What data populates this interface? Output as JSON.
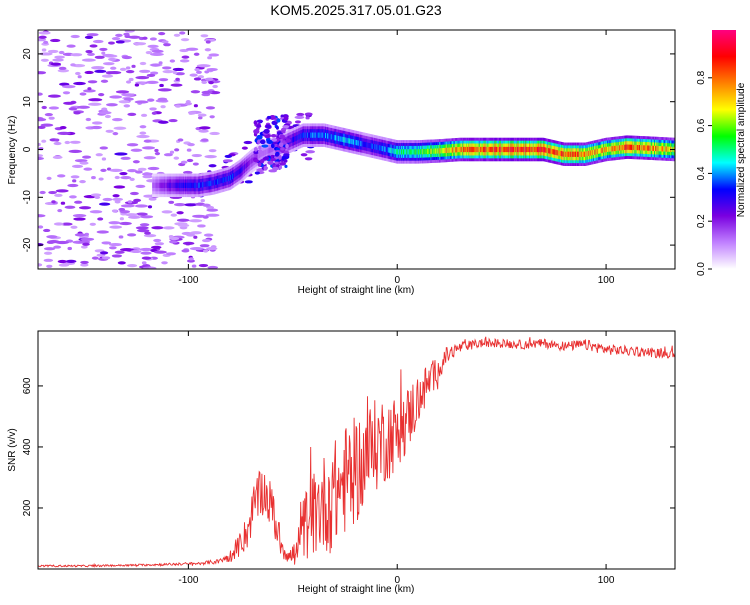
{
  "title": "KOM5.2025.317.05.01.G23",
  "chart_data": [
    {
      "type": "heatmap",
      "title": "KOM5.2025.317.05.01.G23",
      "xlabel": "Height of straight line (km)",
      "ylabel": "Frequency (Hz)",
      "xlim": [
        -172,
        133
      ],
      "ylim": [
        -25,
        25
      ],
      "xticks": [
        -100,
        0,
        100
      ],
      "xtick_labels": [
        "-100",
        "0",
        "100"
      ],
      "yticks": [
        -20,
        -10,
        0,
        10,
        20
      ],
      "ytick_labels": [
        "-20",
        "-10",
        "0",
        "10",
        "20"
      ],
      "colorbar": {
        "label": "Normalized spectral amplitude",
        "range": [
          0,
          1
        ],
        "ticks": [
          0.0,
          0.2,
          0.4,
          0.6,
          0.8
        ],
        "tick_labels": [
          "0.0",
          "0.2",
          "0.4",
          "0.6",
          "0.8"
        ],
        "colors": [
          "#ffffff",
          "#c080ff",
          "#7a00e0",
          "#0000ff",
          "#00ffff",
          "#00ff00",
          "#ffff00",
          "#ff8000",
          "#ff0000",
          "#ff0080"
        ]
      },
      "ridge": {
        "height_km": [
          -117,
          -105,
          -95,
          -88,
          -80,
          -75,
          -70,
          -65,
          -60,
          -55,
          -50,
          -45,
          -40,
          -35,
          -30,
          -25,
          -20,
          -15,
          -10,
          -5,
          0,
          10,
          20,
          30,
          40,
          50,
          60,
          70,
          80,
          90,
          100,
          110,
          120,
          133
        ],
        "frequency_hz": [
          -7.5,
          -7.5,
          -7.5,
          -7.0,
          -6.0,
          -4.5,
          -2.5,
          -1.0,
          0.0,
          1.0,
          2.0,
          3.0,
          3.0,
          3.0,
          2.5,
          2.0,
          1.5,
          1.0,
          0.5,
          0.0,
          -0.5,
          -0.5,
          -0.3,
          0.0,
          0.0,
          0.0,
          0.0,
          0.0,
          -1.0,
          -1.0,
          0.0,
          0.5,
          0.3,
          0.0
        ],
        "amplitude": [
          0.15,
          0.3,
          0.35,
          0.35,
          0.35,
          0.3,
          0.2,
          0.15,
          0.15,
          0.25,
          0.3,
          0.35,
          0.4,
          0.4,
          0.4,
          0.45,
          0.4,
          0.35,
          0.35,
          0.4,
          0.5,
          0.55,
          0.7,
          0.8,
          0.85,
          0.88,
          0.9,
          0.88,
          0.85,
          0.8,
          0.75,
          0.85,
          0.8,
          0.7
        ]
      }
    },
    {
      "type": "line",
      "xlabel": "Height of straight line (km)",
      "ylabel": "SNR (v/v)",
      "xlim": [
        -172,
        133
      ],
      "ylim": [
        0,
        780
      ],
      "xticks": [
        -100,
        0,
        100
      ],
      "xtick_labels": [
        "-100",
        "0",
        "100"
      ],
      "yticks": [
        200,
        400,
        600
      ],
      "ytick_labels": [
        "200",
        "400",
        "600"
      ],
      "series": [
        {
          "name": "SNR",
          "color": "#e83030",
          "x": [
            -172,
            -150,
            -130,
            -110,
            -95,
            -85,
            -78,
            -72,
            -68,
            -64,
            -60,
            -56,
            -52,
            -48,
            -44,
            -40,
            -36,
            -32,
            -28,
            -24,
            -20,
            -16,
            -12,
            -8,
            -4,
            0,
            4,
            8,
            12,
            16,
            20,
            24,
            28,
            32,
            36,
            40,
            50,
            60,
            70,
            80,
            90,
            100,
            110,
            120,
            133
          ],
          "values": [
            10,
            10,
            12,
            15,
            18,
            25,
            50,
            120,
            220,
            260,
            200,
            90,
            40,
            50,
            150,
            180,
            210,
            230,
            260,
            300,
            320,
            360,
            390,
            420,
            430,
            450,
            480,
            530,
            580,
            620,
            660,
            700,
            720,
            730,
            735,
            740,
            740,
            735,
            740,
            730,
            735,
            720,
            715,
            710,
            705
          ],
          "noise": [
            3,
            3,
            3,
            4,
            5,
            8,
            25,
            60,
            80,
            80,
            80,
            50,
            25,
            60,
            120,
            140,
            160,
            180,
            180,
            180,
            180,
            170,
            160,
            150,
            140,
            120,
            110,
            100,
            80,
            60,
            40,
            30,
            20,
            16,
            15,
            15,
            15,
            15,
            15,
            15,
            18,
            18,
            16,
            15,
            15
          ]
        }
      ]
    }
  ]
}
